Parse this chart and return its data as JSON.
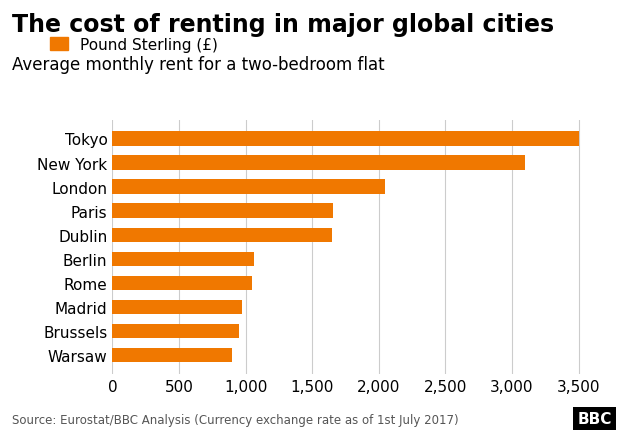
{
  "title": "The cost of renting in major global cities",
  "subtitle": "Average monthly rent for a two-bedroom flat",
  "legend_label": "Pound Sterling (£)",
  "source": "Source: Eurostat/BBC Analysis (Currency exchange rate as of 1st July 2017)",
  "cities": [
    "Warsaw",
    "Brussels",
    "Madrid",
    "Rome",
    "Berlin",
    "Dublin",
    "Paris",
    "London",
    "New York",
    "Tokyo"
  ],
  "values": [
    900,
    950,
    975,
    1050,
    1060,
    1650,
    1660,
    2050,
    3100,
    3500
  ],
  "bar_color": "#f07800",
  "background_color": "#ffffff",
  "xlim": [
    0,
    3700
  ],
  "xticks": [
    0,
    500,
    1000,
    1500,
    2000,
    2500,
    3000,
    3500
  ],
  "grid_color": "#cccccc",
  "title_fontsize": 17,
  "subtitle_fontsize": 12,
  "tick_fontsize": 11,
  "label_fontsize": 11,
  "source_fontsize": 8.5
}
